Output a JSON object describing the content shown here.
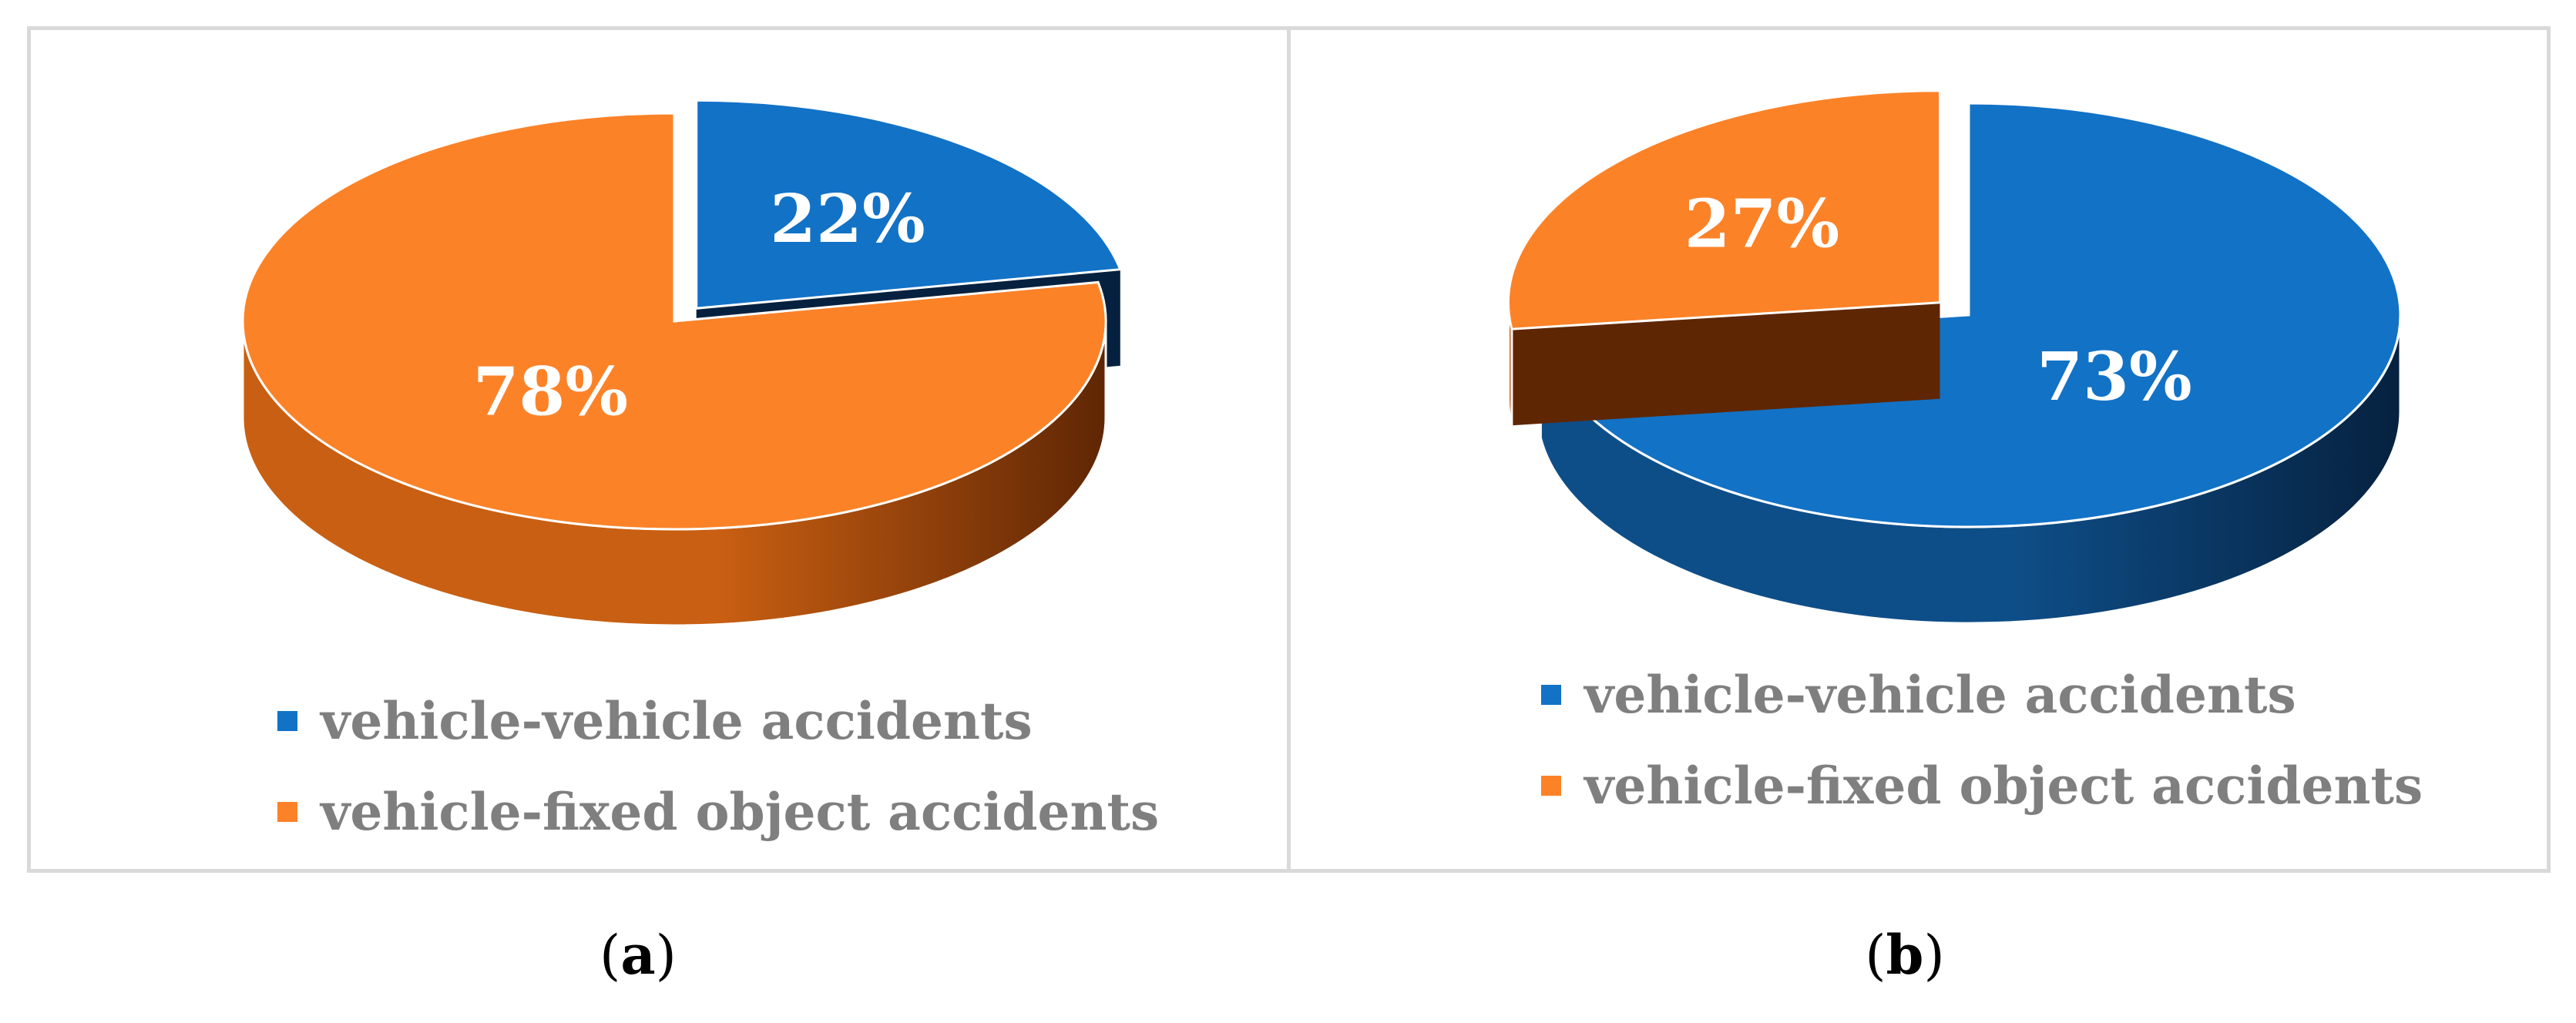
{
  "colors": {
    "blue": "#1272c6",
    "blue_side": "#0e4e88",
    "blue_dark": "#06213f",
    "orange": "#fc8228",
    "orange_side": "#c95f12",
    "orange_dark": "#5f2604"
  },
  "chart_data": [
    {
      "type": "pie",
      "panel_label": "a",
      "exploded": "vehicle-vehicle accidents",
      "slices": [
        {
          "name": "vehicle-vehicle accidents",
          "value": 22,
          "label": "22%",
          "color": "#1272c6"
        },
        {
          "name": "vehicle-fixed object accidents",
          "value": 78,
          "label": "78%",
          "color": "#fc8228"
        }
      ],
      "legend_position": "bottom-left"
    },
    {
      "type": "pie",
      "panel_label": "b",
      "exploded": "vehicle-fixed object accidents",
      "slices": [
        {
          "name": "vehicle-vehicle accidents",
          "value": 73,
          "label": "73%",
          "color": "#1272c6"
        },
        {
          "name": "vehicle-fixed object accidents",
          "value": 27,
          "label": "27%",
          "color": "#fc8228"
        }
      ],
      "legend_position": "bottom-left"
    }
  ],
  "legend": {
    "a": [
      "vehicle-vehicle accidents",
      "vehicle-fixed object accidents"
    ],
    "b": [
      "vehicle-vehicle accidents",
      "vehicle-fixed object accidents"
    ]
  },
  "captions": {
    "a": {
      "open": "(",
      "letter": "a",
      "close": ")"
    },
    "b": {
      "open": "(",
      "letter": "b",
      "close": ")"
    }
  }
}
